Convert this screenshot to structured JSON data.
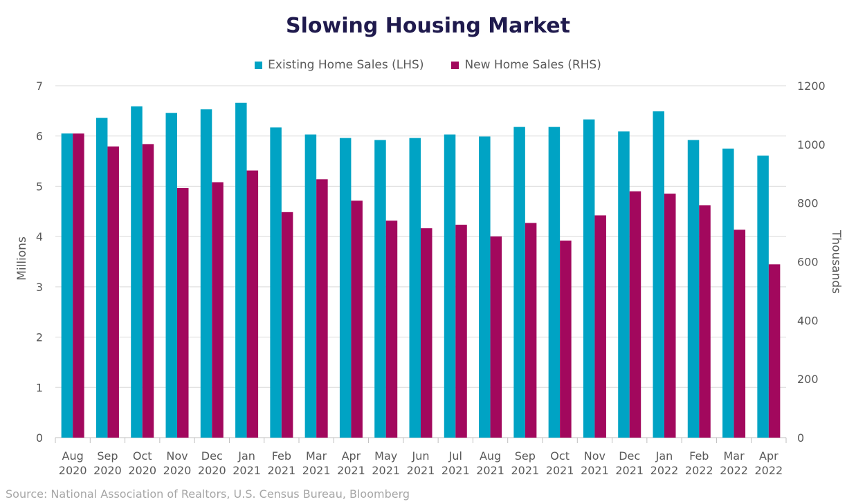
{
  "chart_data": {
    "type": "bar",
    "title": "Slowing Housing Market",
    "categories": [
      [
        "Aug",
        "2020"
      ],
      [
        "Sep",
        "2020"
      ],
      [
        "Oct",
        "2020"
      ],
      [
        "Nov",
        "2020"
      ],
      [
        "Dec",
        "2020"
      ],
      [
        "Jan",
        "2021"
      ],
      [
        "Feb",
        "2021"
      ],
      [
        "Mar",
        "2021"
      ],
      [
        "Apr",
        "2021"
      ],
      [
        "May",
        "2021"
      ],
      [
        "Jun",
        "2021"
      ],
      [
        "Jul",
        "2021"
      ],
      [
        "Aug",
        "2021"
      ],
      [
        "Sep",
        "2021"
      ],
      [
        "Oct",
        "2021"
      ],
      [
        "Nov",
        "2021"
      ],
      [
        "Dec",
        "2021"
      ],
      [
        "Jan",
        "2022"
      ],
      [
        "Feb",
        "2022"
      ],
      [
        "Mar",
        "2022"
      ],
      [
        "Apr",
        "2022"
      ]
    ],
    "series": [
      {
        "name": "Existing Home Sales (LHS)",
        "axis": "left",
        "color": "#00a3c4",
        "values": [
          6.05,
          6.36,
          6.59,
          6.46,
          6.53,
          6.66,
          6.17,
          6.03,
          5.96,
          5.92,
          5.96,
          6.03,
          5.99,
          6.18,
          6.18,
          6.33,
          6.09,
          6.49,
          5.92,
          5.75,
          5.61
        ]
      },
      {
        "name": "New Home Sales (RHS)",
        "axis": "right",
        "color": "#a2085d",
        "values": [
          1037,
          993,
          1001,
          851,
          871,
          911,
          769,
          881,
          808,
          740,
          714,
          726,
          686,
          732,
          672,
          758,
          840,
          832,
          792,
          709,
          591
        ]
      }
    ],
    "y_left": {
      "label": "Millions",
      "ylim": [
        0,
        7
      ],
      "ticks": [
        "0",
        "1",
        "2",
        "3",
        "4",
        "5",
        "6",
        "7"
      ]
    },
    "y_right": {
      "label": "Thousands",
      "ylim": [
        0,
        1200
      ],
      "ticks": [
        "0",
        "200",
        "400",
        "600",
        "800",
        "1000",
        "1200"
      ]
    },
    "grid": true,
    "legend_position": "top-center",
    "source": "Source: National Association of Realtors, U.S. Census Bureau, Bloomberg"
  }
}
